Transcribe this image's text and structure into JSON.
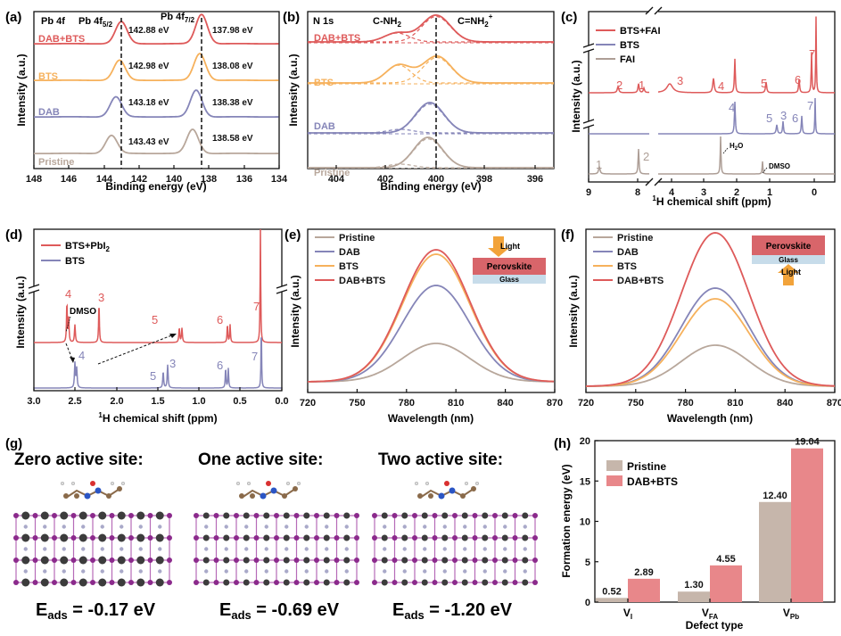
{
  "colors": {
    "pristine": "#b8a79b",
    "dab": "#8585b8",
    "bts": "#f6b15c",
    "dabbts": "#de5a5a",
    "fai": "#ad9e96",
    "black": "#111111",
    "pb": "#8b2a8c",
    "pbdark": "#3c3c3c",
    "pbar": "#c6b6ab",
    "dbar": "#e8878a"
  },
  "panels": {
    "a": "(a)",
    "b": "(b)",
    "c": "(c)",
    "d": "(d)",
    "e": "(e)",
    "f": "(f)",
    "g": "(g)",
    "h": "(h)"
  },
  "panel_a": {
    "title": "Pb 4f",
    "peak1_main": "Pb 4f",
    "peak1_sub": "5/2",
    "peak2_main": "Pb 4f",
    "peak2_sub": "7/2",
    "xlabel": "Binding energy (eV)",
    "ylabel": "Intensity (a.u.)",
    "xticks": [
      "148",
      "146",
      "144",
      "142",
      "140",
      "138",
      "136",
      "134"
    ],
    "series": [
      {
        "name": "DAB+BTS",
        "color": "dabbts",
        "e1": "142.88 eV",
        "e2": "137.98 eV"
      },
      {
        "name": "BTS",
        "color": "bts",
        "e1": "142.98 eV",
        "e2": "138.08 eV"
      },
      {
        "name": "DAB",
        "color": "dab",
        "e1": "143.18 eV",
        "e2": "138.38 eV"
      },
      {
        "name": "Pristine",
        "color": "pristine",
        "e1": "143.43 eV",
        "e2": "138.58 eV"
      }
    ]
  },
  "panel_b": {
    "title": "N 1s",
    "ann1": "C-NH",
    "ann1_sub": "2",
    "ann2": "C=NH",
    "ann2_sub": "2",
    "ann2_sup": "+",
    "xlabel": "Binding energy (eV)",
    "ylabel": "Intensity (a.u.)",
    "xticks": [
      "404",
      "402",
      "400",
      "398",
      "396"
    ],
    "series": [
      "DAB+BTS",
      "BTS",
      "DAB",
      "Pristine"
    ]
  },
  "panel_c": {
    "legend": [
      "BTS+FAI",
      "BTS",
      "FAI"
    ],
    "xlabel_sup": "1",
    "xlabel": "H chemical shift (ppm)",
    "ylabel": "Intensity (a.u.)",
    "xticks": [
      "9",
      "8",
      "4",
      "3",
      "2",
      "1",
      "0"
    ],
    "top_labels": [
      "2",
      "1",
      "3",
      "4",
      "5",
      "6",
      "7"
    ],
    "mid_labels": [
      "4",
      "5",
      "3",
      "6",
      "7"
    ],
    "bot_labels": [
      "1",
      "2"
    ],
    "h2o": "H",
    "h2o_sub": "2",
    "h2o_end": "O",
    "dmso": "DMSO"
  },
  "panel_d": {
    "legend_main": "BTS+PbI",
    "legend_sub": "2",
    "legend2": "BTS",
    "xlabel_sup": "1",
    "xlabel": "H chemical shift (ppm)",
    "ylabel": "Intensity (a.u.)",
    "xticks": [
      "3.0",
      "2.5",
      "2.0",
      "1.5",
      "1.0",
      "0.5",
      "0.0"
    ],
    "top_labels": [
      "4",
      "3",
      "5",
      "6",
      "7"
    ],
    "bot_labels": [
      "4",
      "5",
      "3",
      "6",
      "7"
    ],
    "dmso": "DMSO"
  },
  "panel_e": {
    "legend": [
      "Pristine",
      "DAB",
      "BTS",
      "DAB+BTS"
    ],
    "xlabel": "Wavelength (nm)",
    "ylabel": "Intensity (a.u.)",
    "xticks": [
      "720",
      "750",
      "780",
      "810",
      "840",
      "870"
    ],
    "light": "Light",
    "perov": "Perovskite",
    "glass": "Glass"
  },
  "panel_f": {
    "legend": [
      "Pristine",
      "DAB",
      "BTS",
      "DAB+BTS"
    ],
    "xlabel": "Wavelength (nm)",
    "ylabel": "Intensity (a.u.)",
    "xticks": [
      "720",
      "750",
      "780",
      "810",
      "840",
      "870"
    ],
    "light": "Light",
    "perov": "Perovskite",
    "glass": "Glass"
  },
  "panel_g": {
    "titles": [
      "Zero active site:",
      "One active site:",
      "Two active site:"
    ],
    "eads_main": "E",
    "eads_sub": "ads",
    "energies": [
      " = -0.17 eV",
      " = -0.69 eV",
      " = -1.20 eV"
    ]
  },
  "chart_data": [
    {
      "type": "bar",
      "panel": "h",
      "title": "",
      "xlabel": "Defect type",
      "ylabel": "Formation energy (eV)",
      "categories": [
        "V_I",
        "V_FA",
        "V_Pb"
      ],
      "category_labels": [
        {
          "main": "V",
          "sub": "I"
        },
        {
          "main": "V",
          "sub": "FA"
        },
        {
          "main": "V",
          "sub": "Pb"
        }
      ],
      "ylim": [
        0,
        20
      ],
      "yticks": [
        "0",
        "5",
        "10",
        "15",
        "20"
      ],
      "series": [
        {
          "name": "Pristine",
          "values": [
            0.52,
            1.3,
            12.4
          ],
          "labels": [
            "0.52",
            "1.30",
            "12.40"
          ]
        },
        {
          "name": "DAB+BTS",
          "values": [
            2.89,
            4.55,
            19.04
          ],
          "labels": [
            "2.89",
            "4.55",
            "19.04"
          ]
        }
      ],
      "legend": "top-left"
    }
  ]
}
